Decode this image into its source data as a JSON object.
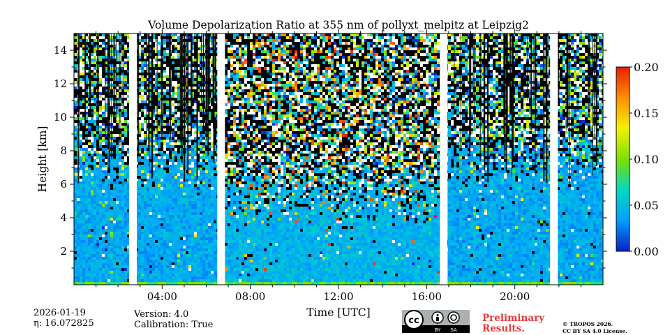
{
  "chart_data": {
    "type": "heatmap",
    "title": "Volume Depolarization Ratio at 355 nm of pollyxt_melpitz at Leipzig2",
    "xlabel": "Time [UTC]",
    "ylabel": "Height [km]",
    "x_range_hours": [
      0,
      24
    ],
    "y_range_km": [
      0,
      15
    ],
    "x_ticks_hours": [
      4,
      8,
      12,
      16,
      20
    ],
    "x_tick_labels": [
      "04:00",
      "08:00",
      "12:00",
      "16:00",
      "20:00"
    ],
    "y_ticks": [
      2,
      4,
      6,
      8,
      10,
      12,
      14
    ],
    "y_tick_labels": [
      "2",
      "4",
      "6",
      "8",
      "10",
      "12",
      "14"
    ],
    "data_gaps_hours": [
      [
        2.5,
        2.85
      ],
      [
        6.5,
        6.85
      ],
      [
        16.6,
        16.95
      ],
      [
        21.6,
        21.95
      ]
    ],
    "colorbar": {
      "range": [
        0.0,
        0.2
      ],
      "ticks": [
        0.0,
        0.05,
        0.1,
        0.15,
        0.2
      ],
      "tick_labels": [
        "0.00",
        "0.05",
        "0.10",
        "0.15",
        "0.20"
      ],
      "colors": [
        "#0a1ec8",
        "#00a0ff",
        "#00d8c0",
        "#7ee000",
        "#f2f200",
        "#ff9000",
        "#e81e00"
      ]
    }
  },
  "footer": {
    "date": "2026-01-19",
    "eta_label": "η: 16.072825",
    "version": "Version: 4.0",
    "calibration": "Calibration: True",
    "preliminary": "Preliminary Results.",
    "copyright_line1": "© TROPOS 2026.",
    "copyright_line2": "CC BY SA 4.0 License.",
    "cc_badge_text": "cc",
    "cc_by": "BY",
    "cc_sa": "SA"
  }
}
